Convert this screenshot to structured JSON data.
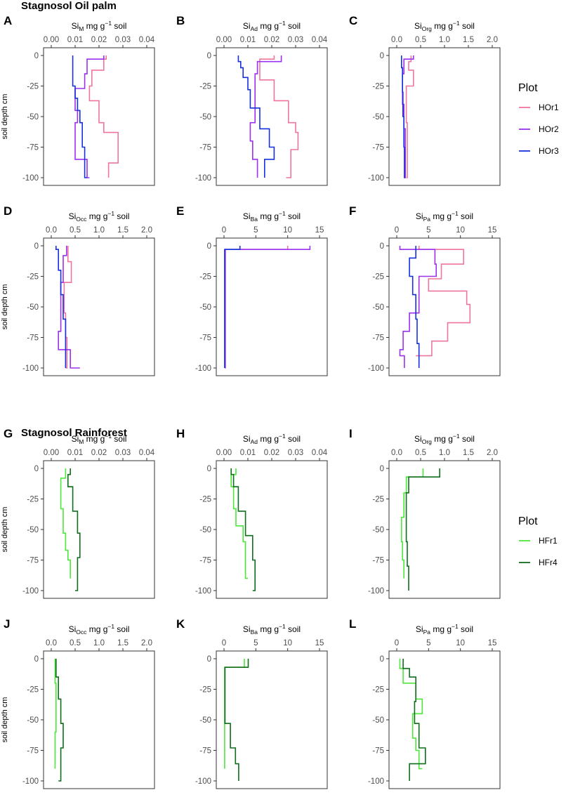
{
  "chart_data": {
    "type": "line",
    "sections": [
      {
        "title": "Stagnosol Oil palm",
        "legend_title": "Plot",
        "legend": [
          {
            "name": "HOr1",
            "color": "#f0749e"
          },
          {
            "name": "HOr2",
            "color": "#9b30ef"
          },
          {
            "name": "HOr3",
            "color": "#1530e0"
          }
        ]
      },
      {
        "title": "Stagnosol Rainforest",
        "legend_title": "Plot",
        "legend": [
          {
            "name": "HFr1",
            "color": "#4be83a"
          },
          {
            "name": "HFr4",
            "color": "#0f6e1c"
          }
        ]
      }
    ],
    "ylabel": "soil depth cm",
    "ylim": [
      -100,
      0
    ],
    "yticks": [
      0,
      -25,
      -50,
      -75,
      -100
    ],
    "panels": [
      {
        "id": "A",
        "section": 0,
        "xlabel": {
          "base": "Si",
          "sub": "M",
          "rest": " mg g",
          "sup": "−1",
          "end": " soil"
        },
        "xlim": [
          0,
          0.04
        ],
        "xticks": [
          "0.00",
          "0.01",
          "0.02",
          "0.03",
          "0.04"
        ],
        "series": [
          {
            "name": "HOr1",
            "color": "#f0749e",
            "x": [
              0.023,
              0.022,
              0.017,
              0.016,
              0.02,
              0.022,
              0.028,
              0.024,
              0.024
            ],
            "y": [
              0,
              -3,
              -12,
              -25,
              -37,
              -55,
              -63,
              -88,
              -100
            ]
          },
          {
            "name": "HOr2",
            "color": "#9b30ef",
            "x": [
              0.022,
              0.015,
              0.014,
              0.01,
              0.011,
              0.01,
              0.015,
              0.016
            ],
            "y": [
              0,
              -3,
              -15,
              -27,
              -45,
              -55,
              -85,
              -100
            ]
          },
          {
            "name": "HOr3",
            "color": "#1530e0",
            "x": [
              0.009,
              0.009,
              0.01,
              0.011,
              0.012,
              0.013,
              0.014,
              0.015
            ],
            "y": [
              0,
              -6,
              -25,
              -35,
              -45,
              -55,
              -75,
              -100
            ]
          }
        ]
      },
      {
        "id": "B",
        "section": 0,
        "xlabel": {
          "base": "Si",
          "sub": "Ad",
          "rest": " mg g",
          "sup": "−1",
          "end": " soil"
        },
        "xlim": [
          0,
          0.04
        ],
        "xticks": [
          "0.00",
          "0.01",
          "0.02",
          "0.03",
          "0.04"
        ],
        "series": [
          {
            "name": "HOr1",
            "color": "#f0749e",
            "x": [
              0.021,
              0.015,
              0.021,
              0.027,
              0.03,
              0.031,
              0.028,
              0.026
            ],
            "y": [
              0,
              -3,
              -20,
              -37,
              -55,
              -63,
              -77,
              -100
            ]
          },
          {
            "name": "HOr2",
            "color": "#9b30ef",
            "x": [
              0.024,
              0.014,
              0.013,
              0.013,
              0.011,
              0.012,
              0.014,
              0.014
            ],
            "y": [
              0,
              -5,
              -15,
              -35,
              -55,
              -70,
              -85,
              -100
            ]
          },
          {
            "name": "HOr3",
            "color": "#1530e0",
            "x": [
              0.006,
              0.007,
              0.008,
              0.01,
              0.011,
              0.015,
              0.019,
              0.021,
              0.017,
              0.017
            ],
            "y": [
              0,
              -5,
              -10,
              -18,
              -28,
              -43,
              -60,
              -75,
              -85,
              -100
            ]
          }
        ]
      },
      {
        "id": "C",
        "section": 0,
        "xlabel": {
          "base": "Si",
          "sub": "Org",
          "rest": " mg g",
          "sup": "−1",
          "end": " soil"
        },
        "xlim": [
          0,
          2.0
        ],
        "xticks": [
          "0.0",
          "0.5",
          "1.0",
          "1.5",
          "2.0"
        ],
        "series": [
          {
            "name": "HOr1",
            "color": "#f0749e",
            "x": [
              0.3,
              0.25,
              0.35,
              0.2,
              0.2,
              0.22,
              0.2
            ],
            "y": [
              0,
              -5,
              -12,
              -25,
              -40,
              -55,
              -100
            ]
          },
          {
            "name": "HOr2",
            "color": "#9b30ef",
            "x": [
              0.35,
              0.15,
              0.12,
              0.15,
              0.18,
              0.16
            ],
            "y": [
              0,
              -3,
              -15,
              -40,
              -60,
              -100
            ]
          },
          {
            "name": "HOr3",
            "color": "#1530e0",
            "x": [
              0.1,
              0.12,
              0.13,
              0.15,
              0.16,
              0.17
            ],
            "y": [
              0,
              -10,
              -30,
              -50,
              -75,
              -100
            ]
          }
        ]
      },
      {
        "id": "D",
        "section": 0,
        "xlabel": {
          "base": "Si",
          "sub": "Occ",
          "rest": " mg g",
          "sup": "−1",
          "end": " soil"
        },
        "xlim": [
          0,
          2.0
        ],
        "xticks": [
          "0.0",
          "0.5",
          "1.0",
          "1.5",
          "2.0"
        ],
        "series": [
          {
            "name": "HOr1",
            "color": "#f0749e",
            "x": [
              0.35,
              0.42,
              0.27,
              0.3,
              0.33,
              0.3
            ],
            "y": [
              0,
              -13,
              -30,
              -55,
              -75,
              -100
            ]
          },
          {
            "name": "HOr2",
            "color": "#9b30ef",
            "x": [
              0.32,
              0.25,
              0.2,
              0.15,
              0.4,
              0.6
            ],
            "y": [
              0,
              -8,
              -30,
              -70,
              -85,
              -100
            ]
          },
          {
            "name": "HOr3",
            "color": "#1530e0",
            "x": [
              0.1,
              0.15,
              0.2,
              0.25,
              0.3,
              0.3
            ],
            "y": [
              0,
              -3,
              -20,
              -40,
              -60,
              -100
            ]
          }
        ]
      },
      {
        "id": "E",
        "section": 0,
        "xlabel": {
          "base": "Si",
          "sub": "Ba",
          "rest": " mg g",
          "sup": "−1",
          "end": " soil"
        },
        "xlim": [
          0,
          15
        ],
        "xticks": [
          "0",
          "5",
          "10",
          "15"
        ],
        "series": [
          {
            "name": "HOr1",
            "color": "#f0749e",
            "x": [
              10.0,
              0.2,
              0.15
            ],
            "y": [
              0,
              -3,
              -100
            ]
          },
          {
            "name": "HOr2",
            "color": "#9b30ef",
            "x": [
              13.5,
              0.2,
              0.15
            ],
            "y": [
              0,
              -3,
              -100
            ]
          },
          {
            "name": "HOr3",
            "color": "#1530e0",
            "x": [
              2.5,
              0.1,
              0.1
            ],
            "y": [
              0,
              -3,
              -100
            ]
          }
        ]
      },
      {
        "id": "F",
        "section": 0,
        "xlabel": {
          "base": "Si",
          "sub": "Pa",
          "rest": " mg g",
          "sup": "−1",
          "end": " soil"
        },
        "xlim": [
          0,
          15
        ],
        "xticks": [
          "0",
          "5",
          "10",
          "15"
        ],
        "series": [
          {
            "name": "HOr1",
            "color": "#f0749e",
            "x": [
              3.5,
              10.5,
              7.0,
              5.0,
              11.0,
              11.5,
              8.0,
              5.5,
              3.0
            ],
            "y": [
              0,
              -3,
              -15,
              -27,
              -37,
              -48,
              -63,
              -78,
              -90
            ]
          },
          {
            "name": "HOr2",
            "color": "#9b30ef",
            "x": [
              0.5,
              6.0,
              6.2,
              3.5,
              2.0,
              1.0,
              0.5,
              1.2,
              1.2
            ],
            "y": [
              0,
              -3,
              -15,
              -25,
              -55,
              -70,
              -85,
              -90,
              -100
            ]
          },
          {
            "name": "HOr3",
            "color": "#1530e0",
            "x": [
              3.0,
              2.0,
              2.5,
              3.0,
              3.2,
              3.5,
              3.5
            ],
            "y": [
              0,
              -10,
              -25,
              -40,
              -60,
              -80,
              -100
            ]
          }
        ]
      },
      {
        "id": "G",
        "section": 1,
        "xlabel": {
          "base": "Si",
          "sub": "M",
          "rest": " mg g",
          "sup": "−1",
          "end": " soil"
        },
        "xlim": [
          0,
          0.04
        ],
        "xticks": [
          "0.00",
          "0.01",
          "0.02",
          "0.03",
          "0.04"
        ],
        "series": [
          {
            "name": "HFr1",
            "color": "#4be83a",
            "x": [
              0.006,
              0.004,
              0.005,
              0.006,
              0.007,
              0.008,
              0.008
            ],
            "y": [
              0,
              -8,
              -33,
              -53,
              -67,
              -75,
              -90
            ]
          },
          {
            "name": "HFr4",
            "color": "#0f6e1c",
            "x": [
              0.008,
              0.007,
              0.009,
              0.011,
              0.012,
              0.011,
              0.01
            ],
            "y": [
              0,
              -5,
              -15,
              -35,
              -53,
              -73,
              -100
            ]
          }
        ]
      },
      {
        "id": "H",
        "section": 1,
        "xlabel": {
          "base": "Si",
          "sub": "Ad",
          "rest": " mg g",
          "sup": "−1",
          "end": " soil"
        },
        "xlim": [
          0,
          0.04
        ],
        "xticks": [
          "0.00",
          "0.01",
          "0.02",
          "0.03",
          "0.04"
        ],
        "series": [
          {
            "name": "HFr1",
            "color": "#4be83a",
            "x": [
              0.005,
              0.003,
              0.004,
              0.005,
              0.008,
              0.009,
              0.01
            ],
            "y": [
              0,
              -5,
              -15,
              -33,
              -47,
              -60,
              -90
            ]
          },
          {
            "name": "HFr4",
            "color": "#0f6e1c",
            "x": [
              0.003,
              0.004,
              0.006,
              0.009,
              0.012,
              0.013,
              0.012
            ],
            "y": [
              0,
              -5,
              -15,
              -35,
              -55,
              -75,
              -100
            ]
          }
        ]
      },
      {
        "id": "I",
        "section": 1,
        "xlabel": {
          "base": "Si",
          "sub": "Org",
          "rest": " mg g",
          "sup": "−1",
          "end": " soil"
        },
        "xlim": [
          0,
          2.0
        ],
        "xticks": [
          "0.0",
          "0.5",
          "1.0",
          "1.5",
          "2.0"
        ],
        "series": [
          {
            "name": "HFr1",
            "color": "#4be83a",
            "x": [
              0.55,
              0.2,
              0.15,
              0.1,
              0.12,
              0.15,
              0.15
            ],
            "y": [
              0,
              -7,
              -20,
              -40,
              -60,
              -75,
              -90
            ]
          },
          {
            "name": "HFr4",
            "color": "#0f6e1c",
            "x": [
              0.9,
              0.25,
              0.2,
              0.2,
              0.22,
              0.25,
              0.25
            ],
            "y": [
              0,
              -7,
              -20,
              -40,
              -60,
              -80,
              -100
            ]
          }
        ]
      },
      {
        "id": "J",
        "section": 1,
        "xlabel": {
          "base": "Si",
          "sub": "Occ",
          "rest": " mg g",
          "sup": "−1",
          "end": " soil"
        },
        "xlim": [
          0,
          2.0
        ],
        "xticks": [
          "0.0",
          "0.5",
          "1.0",
          "1.5",
          "2.0"
        ],
        "series": [
          {
            "name": "HFr1",
            "color": "#4be83a",
            "x": [
              0.08,
              0.1,
              0.1,
              0.08,
              0.08,
              0.08
            ],
            "y": [
              0,
              -20,
              -40,
              -60,
              -80,
              -90
            ]
          },
          {
            "name": "HFr4",
            "color": "#0f6e1c",
            "x": [
              0.1,
              0.15,
              0.2,
              0.25,
              0.2,
              0.15
            ],
            "y": [
              0,
              -15,
              -33,
              -53,
              -73,
              -100
            ]
          }
        ]
      },
      {
        "id": "K",
        "section": 1,
        "xlabel": {
          "base": "Si",
          "sub": "Ba",
          "rest": " mg g",
          "sup": "−1",
          "end": " soil"
        },
        "xlim": [
          0,
          15
        ],
        "xticks": [
          "0",
          "5",
          "10",
          "15"
        ],
        "series": [
          {
            "name": "HFr1",
            "color": "#4be83a",
            "x": [
              3.2,
              0.1,
              0.1
            ],
            "y": [
              0,
              -7,
              -90
            ]
          },
          {
            "name": "HFr4",
            "color": "#0f6e1c",
            "x": [
              3.8,
              0.15,
              1.0,
              1.8,
              2.3,
              2.3
            ],
            "y": [
              0,
              -7,
              -53,
              -73,
              -86,
              -100
            ]
          }
        ]
      },
      {
        "id": "L",
        "section": 1,
        "xlabel": {
          "base": "Si",
          "sub": "Pa",
          "rest": " mg g",
          "sup": "−1",
          "end": " soil"
        },
        "xlim": [
          0,
          15
        ],
        "xticks": [
          "0",
          "5",
          "10",
          "15"
        ],
        "series": [
          {
            "name": "HFr1",
            "color": "#4be83a",
            "x": [
              0.5,
              1.0,
              3.0,
              4.0,
              2.5,
              3.0,
              3.5,
              4.0
            ],
            "y": [
              0,
              -8,
              -20,
              -33,
              -45,
              -65,
              -75,
              -90
            ]
          },
          {
            "name": "HFr4",
            "color": "#0f6e1c",
            "x": [
              1.0,
              2.0,
              3.0,
              2.8,
              3.5,
              4.5,
              2.0,
              2.0
            ],
            "y": [
              0,
              -8,
              -15,
              -35,
              -53,
              -73,
              -86,
              -100
            ]
          }
        ]
      }
    ]
  }
}
